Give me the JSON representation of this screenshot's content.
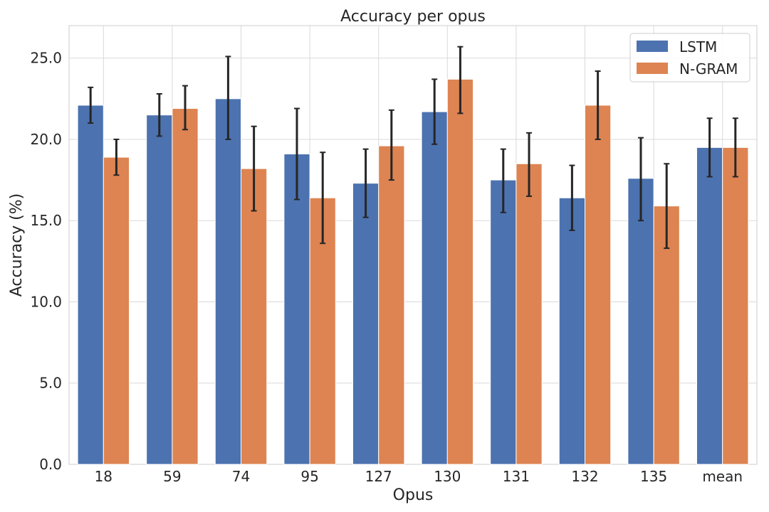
{
  "chart_data": {
    "type": "bar",
    "title": "Accuracy per opus",
    "xlabel": "Opus",
    "ylabel": "Accuracy (%)",
    "categories": [
      "18",
      "59",
      "74",
      "95",
      "127",
      "130",
      "131",
      "132",
      "135",
      "mean"
    ],
    "series": [
      {
        "name": "LSTM",
        "color": "#4c72b0",
        "values": [
          22.1,
          21.5,
          22.5,
          19.1,
          17.3,
          21.7,
          17.5,
          16.4,
          17.6,
          19.5
        ],
        "error_low": [
          21.0,
          20.2,
          20.0,
          16.3,
          15.2,
          19.7,
          15.5,
          14.4,
          15.0,
          17.7
        ],
        "error_high": [
          23.2,
          22.8,
          25.1,
          21.9,
          19.4,
          23.7,
          19.4,
          18.4,
          20.1,
          21.3
        ]
      },
      {
        "name": "N-GRAM",
        "color": "#dd8452",
        "values": [
          18.9,
          21.9,
          18.2,
          16.4,
          19.6,
          23.7,
          18.5,
          22.1,
          15.9,
          19.5
        ],
        "error_low": [
          17.8,
          20.6,
          15.6,
          13.6,
          17.5,
          21.6,
          16.5,
          20.0,
          13.3,
          17.7
        ],
        "error_high": [
          20.0,
          23.3,
          20.8,
          19.2,
          21.8,
          25.7,
          20.4,
          24.2,
          18.5,
          21.3
        ]
      }
    ],
    "ylim": [
      0,
      27
    ],
    "yticks": [
      "0.0",
      "5.0",
      "10.0",
      "15.0",
      "20.0",
      "25.0"
    ],
    "grid": true,
    "legend_position": "top-right",
    "error_bar_color": "#262626"
  }
}
